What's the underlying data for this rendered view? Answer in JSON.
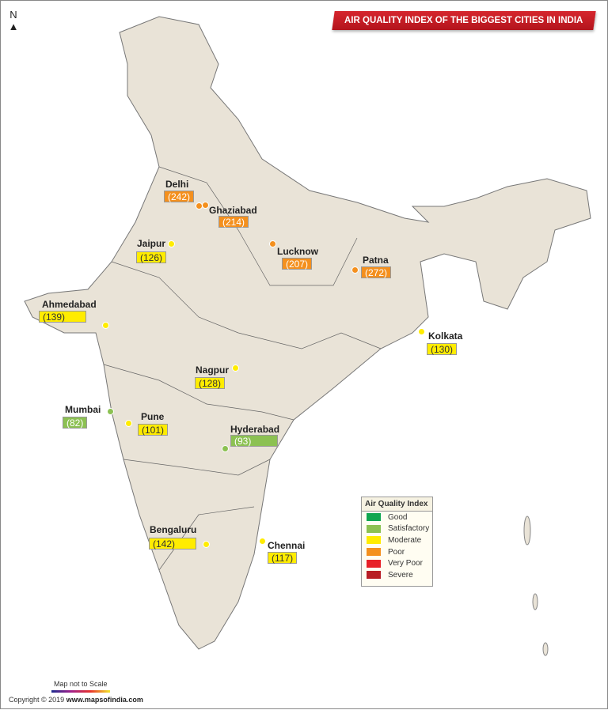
{
  "title": "AIR QUALITY INDEX OF THE BIGGEST CITIES IN INDIA",
  "north_label": "N",
  "colors": {
    "Good": "#10a651",
    "Satisfactory": "#8cc152",
    "Moderate": "#ffec00",
    "Poor": "#f4901e",
    "Very Poor": "#e82127",
    "Severe": "#b81e25",
    "land": "#e9e3d7",
    "border": "#555"
  },
  "cities": [
    {
      "name": "Delhi",
      "aqi": "(242)",
      "category": "Poor"
    },
    {
      "name": "Ghaziabad",
      "aqi": "(214)",
      "category": "Poor"
    },
    {
      "name": "Jaipur",
      "aqi": "(126)",
      "category": "Moderate"
    },
    {
      "name": "Lucknow",
      "aqi": "(207)",
      "category": "Poor"
    },
    {
      "name": "Patna",
      "aqi": "(272)",
      "category": "Poor"
    },
    {
      "name": "Ahmedabad",
      "aqi": "(139)",
      "category": "Moderate"
    },
    {
      "name": "Kolkata",
      "aqi": "(130)",
      "category": "Moderate"
    },
    {
      "name": "Nagpur",
      "aqi": "(128)",
      "category": "Moderate"
    },
    {
      "name": "Mumbai",
      "aqi": "(82)",
      "category": "Satisfactory"
    },
    {
      "name": "Pune",
      "aqi": "(101)",
      "category": "Moderate"
    },
    {
      "name": "Hyderabad",
      "aqi": "(93)",
      "category": "Satisfactory"
    },
    {
      "name": "Bengaluru",
      "aqi": "(142)",
      "category": "Moderate"
    },
    {
      "name": "Chennai",
      "aqi": "(117)",
      "category": "Moderate"
    }
  ],
  "legend": {
    "title": "Air Quality Index",
    "items": [
      "Good",
      "Satisfactory",
      "Moderate",
      "Poor",
      "Very Poor",
      "Severe"
    ]
  },
  "scale_note": "Map not to Scale",
  "copyright": "Copyright © 2019",
  "website": "www.mapsofindia.com"
}
